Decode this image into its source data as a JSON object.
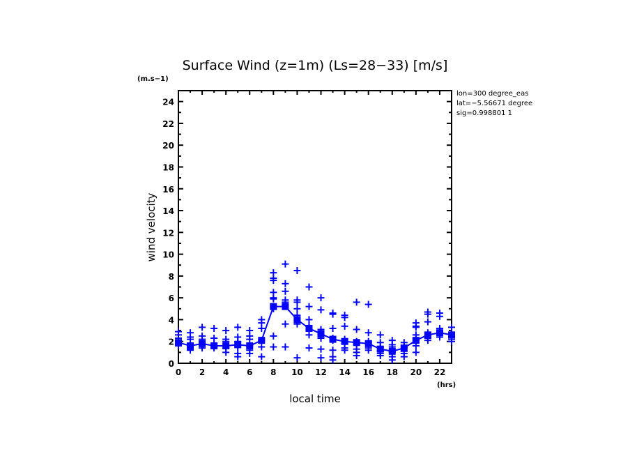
{
  "chart_data": {
    "type": "scatter",
    "title": "Surface Wind (z=1m) (Ls=28−33) [m/s]",
    "xlabel": "local time",
    "ylabel": "wind velocity",
    "x_unit": "(hrs)",
    "y_unit": "(m.s−1)",
    "xlim": [
      0,
      23
    ],
    "ylim": [
      0,
      25
    ],
    "x_ticks": [
      "0",
      "2",
      "4",
      "6",
      "8",
      "10",
      "12",
      "14",
      "16",
      "18",
      "20",
      "22"
    ],
    "y_ticks": [
      "0",
      "2",
      "4",
      "6",
      "8",
      "10",
      "12",
      "14",
      "16",
      "18",
      "20",
      "22",
      "24"
    ],
    "color": "#0000ff",
    "info_lines": [
      "lon=300 degree_eas",
      "lat=−5.56671 degree",
      "sig=0.998801 1"
    ],
    "mean_line": {
      "x": [
        0,
        1,
        2,
        3,
        4,
        5,
        6,
        7,
        8,
        9,
        10,
        11,
        12,
        13,
        14,
        15,
        16,
        17,
        18,
        19,
        20,
        21,
        22,
        23
      ],
      "y": [
        1.9,
        1.6,
        1.8,
        1.6,
        1.6,
        1.7,
        1.6,
        2.1,
        5.2,
        5.2,
        4.0,
        3.2,
        2.7,
        2.2,
        2.0,
        1.9,
        1.8,
        1.3,
        1.1,
        1.4,
        2.1,
        2.6,
        2.8,
        2.6
      ]
    },
    "points": [
      {
        "x": 0,
        "y": [
          2.9,
          2.6,
          2.3,
          2.0,
          1.8,
          1.6
        ]
      },
      {
        "x": 1,
        "y": [
          2.8,
          2.4,
          2.2,
          1.8,
          1.5,
          1.3,
          1.2
        ]
      },
      {
        "x": 2,
        "y": [
          3.3,
          2.5,
          2.2,
          1.9,
          1.6,
          1.4
        ]
      },
      {
        "x": 3,
        "y": [
          3.2,
          2.3,
          1.8,
          1.6,
          1.5,
          1.4
        ]
      },
      {
        "x": 4,
        "y": [
          3.0,
          2.2,
          2.0,
          1.6,
          1.4,
          1.0
        ]
      },
      {
        "x": 5,
        "y": [
          3.3,
          2.4,
          2.0,
          1.7,
          1.5,
          0.9,
          0.6
        ]
      },
      {
        "x": 6,
        "y": [
          3.0,
          2.5,
          2.2,
          1.6,
          1.2,
          0.9
        ]
      },
      {
        "x": 7,
        "y": [
          4.0,
          3.7,
          3.2,
          2.1,
          1.5,
          0.6
        ]
      },
      {
        "x": 8,
        "y": [
          8.3,
          7.8,
          7.6,
          6.5,
          6.0,
          5.9,
          5.0,
          2.5,
          1.5
        ]
      },
      {
        "x": 9,
        "y": [
          9.1,
          7.3,
          6.6,
          5.8,
          5.6,
          5.3,
          3.6,
          1.5
        ]
      },
      {
        "x": 10,
        "y": [
          8.5,
          5.8,
          5.6,
          5.0,
          4.4,
          4.0,
          3.6,
          0.5
        ]
      },
      {
        "x": 11,
        "y": [
          7.0,
          5.2,
          4.0,
          3.4,
          3.0,
          2.6,
          1.4
        ]
      },
      {
        "x": 12,
        "y": [
          6.0,
          4.9,
          3.1,
          2.8,
          2.6,
          2.3,
          1.3,
          0.5
        ]
      },
      {
        "x": 13,
        "y": [
          4.6,
          4.5,
          3.2,
          2.3,
          2.1,
          1.2,
          0.6,
          0.3
        ]
      },
      {
        "x": 14,
        "y": [
          4.4,
          4.2,
          3.4,
          2.2,
          2.0,
          1.8,
          1.4,
          1.2
        ]
      },
      {
        "x": 15,
        "y": [
          5.6,
          3.1,
          2.0,
          1.9,
          1.7,
          1.3,
          1.0,
          0.7
        ]
      },
      {
        "x": 16,
        "y": [
          5.4,
          2.8,
          2.0,
          1.8,
          1.4,
          1.2
        ]
      },
      {
        "x": 17,
        "y": [
          2.6,
          1.9,
          1.5,
          1.2,
          1.1,
          0.9,
          0.7
        ]
      },
      {
        "x": 18,
        "y": [
          2.1,
          1.7,
          1.5,
          1.1,
          1.0,
          0.6,
          0.3
        ]
      },
      {
        "x": 19,
        "y": [
          1.9,
          1.6,
          1.4,
          1.1,
          0.9,
          0.6
        ]
      },
      {
        "x": 20,
        "y": [
          3.7,
          3.4,
          3.3,
          2.6,
          2.3,
          2.1,
          1.6,
          1.0
        ]
      },
      {
        "x": 21,
        "y": [
          4.7,
          4.5,
          3.8,
          2.8,
          2.5,
          2.3,
          2.1
        ]
      },
      {
        "x": 22,
        "y": [
          4.6,
          4.3,
          3.2,
          3.0,
          2.7,
          2.4
        ]
      },
      {
        "x": 23,
        "y": [
          3.3,
          2.8,
          2.6,
          2.4,
          2.2,
          2.0
        ]
      }
    ]
  }
}
